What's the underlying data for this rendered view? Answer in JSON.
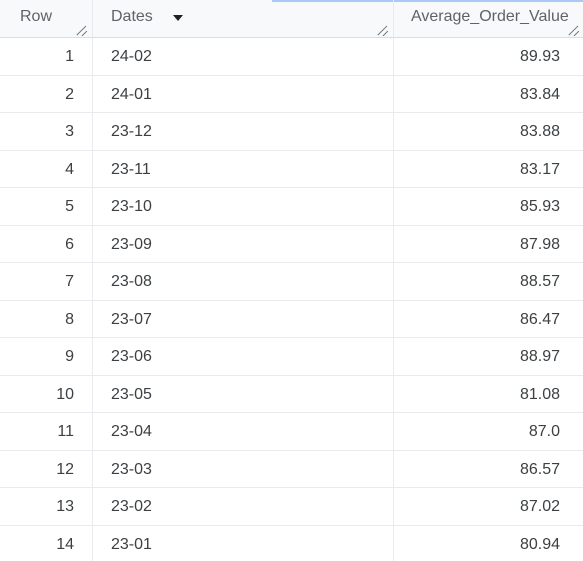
{
  "table": {
    "columns": {
      "row": "Row",
      "dates": "Dates",
      "average_order_value": "Average_Order_Value"
    },
    "sort_column": "Dates",
    "sort_direction": "descending",
    "rows": [
      {
        "row": "1",
        "dates": "24-02",
        "average_order_value": "89.93"
      },
      {
        "row": "2",
        "dates": "24-01",
        "average_order_value": "83.84"
      },
      {
        "row": "3",
        "dates": "23-12",
        "average_order_value": "83.88"
      },
      {
        "row": "4",
        "dates": "23-11",
        "average_order_value": "83.17"
      },
      {
        "row": "5",
        "dates": "23-10",
        "average_order_value": "85.93"
      },
      {
        "row": "6",
        "dates": "23-09",
        "average_order_value": "87.98"
      },
      {
        "row": "7",
        "dates": "23-08",
        "average_order_value": "88.57"
      },
      {
        "row": "8",
        "dates": "23-07",
        "average_order_value": "86.47"
      },
      {
        "row": "9",
        "dates": "23-06",
        "average_order_value": "88.97"
      },
      {
        "row": "10",
        "dates": "23-05",
        "average_order_value": "81.08"
      },
      {
        "row": "11",
        "dates": "23-04",
        "average_order_value": "87.0"
      },
      {
        "row": "12",
        "dates": "23-03",
        "average_order_value": "86.57"
      },
      {
        "row": "13",
        "dates": "23-02",
        "average_order_value": "87.02"
      },
      {
        "row": "14",
        "dates": "23-01",
        "average_order_value": "80.94"
      }
    ]
  },
  "icons": {
    "sort": "sort-descending-icon",
    "resize": "column-resize-icon"
  },
  "colors": {
    "header_background": "#f8f9fa",
    "grid_line": "#e8eaed",
    "text": "#3c4043",
    "header_text": "#5f6368"
  }
}
